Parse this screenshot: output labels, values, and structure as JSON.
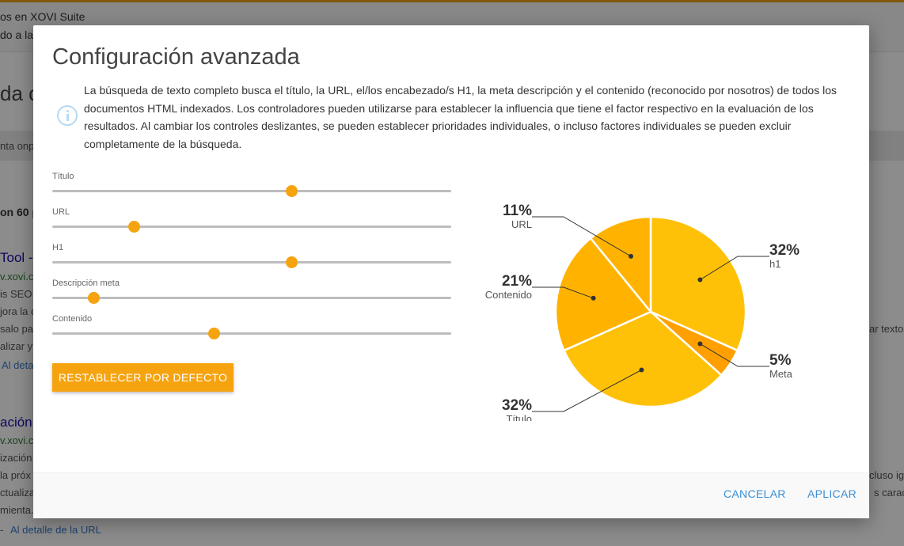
{
  "background": {
    "line1": "os en XOVI Suite",
    "line2": "do a la",
    "heading_fragment": "da c",
    "band_text": "nta onp",
    "count_text": "on 60 p",
    "result1_title": "Tool -",
    "result1_url": "v.xovi.co",
    "result1_l1": "is SEO (",
    "result1_l2": "jora la c",
    "result1_l3": "salo pa",
    "result1_l4": "alizar y c",
    "result1_link": "Al deta",
    "right_text1": "ar textos",
    "result2_title": "ación",
    "result2_url": "v.xovi.co",
    "result2_l1": "ización",
    "result2_l2": " la próx",
    "result2_l3": "ctualiza",
    "result2_l4": "mienta.",
    "right_text2": "cluso igr",
    "right_text3": "s caract",
    "result2_link_dash": "-",
    "result2_link": "Al detalle de la URL"
  },
  "dialog": {
    "title": "Configuración avanzada",
    "description": "La búsqueda de texto completo busca el título, la URL, el/los encabezado/s H1, la meta descripción y el contenido (reconocido por nosotros) de todos los documentos HTML indexados. Los controladores pueden utilizarse para establecer la influencia que tiene el factor respectivo en la evaluación de los resultados. Al cambiar los controles deslizantes, se pueden establecer prioridades individuales, o incluso factores individuales se pueden excluir completamente de la búsqueda.",
    "sliders": [
      {
        "label": "Título",
        "value": 0.6
      },
      {
        "label": "URL",
        "value": 0.205
      },
      {
        "label": "H1",
        "value": 0.6
      },
      {
        "label": "Descripción meta",
        "value": 0.105
      },
      {
        "label": "Contenido",
        "value": 0.405
      }
    ],
    "reset_label": "RESTABLECER POR DEFECTO",
    "cancel_label": "CANCELAR",
    "apply_label": "APLICAR"
  },
  "colors": {
    "accent": "#f5a30f",
    "link": "#3a8fd6",
    "info_icon": "#b7daf2"
  },
  "chart_data": {
    "type": "pie",
    "slices": [
      {
        "name": "h1",
        "label": "32%",
        "value": 32,
        "color": "#ffc107"
      },
      {
        "name": "Meta",
        "label": "5%",
        "value": 5,
        "color": "#ffa000"
      },
      {
        "name": "Título",
        "label": "32%",
        "value": 32,
        "color": "#ffc107"
      },
      {
        "name": "Contenido",
        "label": "21%",
        "value": 21,
        "color": "#ffb300"
      },
      {
        "name": "URL",
        "label": "11%",
        "value": 11,
        "color": "#ffb300"
      }
    ]
  }
}
